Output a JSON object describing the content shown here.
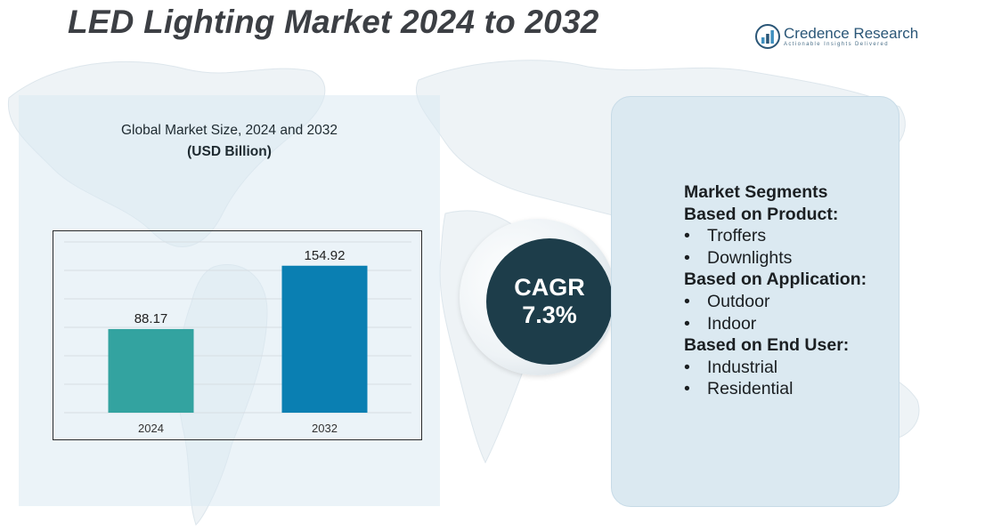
{
  "header": {
    "title": "LED Lighting Market 2024 to 2032"
  },
  "brand": {
    "name": "Credence Research",
    "tagline": "Actionable Insights Delivered",
    "logo_icon": "bar-chart-logo-icon"
  },
  "chart_header": {
    "title": "Global Market Size, 2024 and 2032",
    "subtitle": "(USD Billion)"
  },
  "chart_data": {
    "type": "bar",
    "title": "Global Market Size, 2024 and 2032",
    "ylabel": "(USD Billion)",
    "categories": [
      "2024",
      "2032"
    ],
    "values": [
      88.17,
      154.92
    ],
    "value_labels": [
      "88.17",
      "154.92"
    ],
    "colors": [
      "#33a3a0",
      "#0a7fb2"
    ],
    "ylim": [
      0,
      180
    ],
    "grid": true,
    "legend": "none"
  },
  "cagr": {
    "label": "CAGR",
    "value": "7.3%"
  },
  "segments": {
    "title": "Market Segments",
    "groups": [
      {
        "heading": "Based on Product:",
        "items": [
          "Troffers",
          "Downlights"
        ]
      },
      {
        "heading": "Based on Application:",
        "items": [
          "Outdoor",
          "Indoor"
        ]
      },
      {
        "heading": "Based on End User:",
        "items": [
          "Industrial",
          "Residential"
        ]
      }
    ],
    "bullet": "•"
  },
  "colors": {
    "title": "#3c3f44",
    "cagr_circle": "#1d3d4a",
    "panel": "#dbe9f1"
  }
}
